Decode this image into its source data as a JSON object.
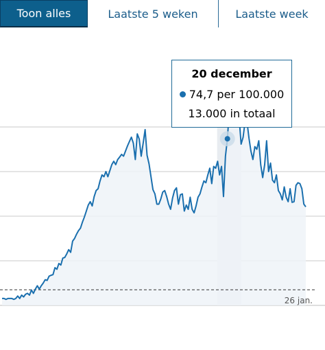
{
  "tabs": [
    {
      "label": "Toon alles",
      "active": true
    },
    {
      "label": "Laatste 5 weken",
      "active": false
    },
    {
      "label": "Laatste week",
      "active": false
    }
  ],
  "colors": {
    "line": "#1a6fae",
    "area": "#eef3f8",
    "grid": "#c8c8c8",
    "dashed": "#333333",
    "tab_active_bg": "#0d5f8c",
    "tab_text": "#1a5c8a",
    "highlight_band": "#e8ecf0"
  },
  "tooltip": {
    "title": "20 december",
    "value_text": "74,7 per 100.000",
    "total_text": "13.000 in totaal"
  },
  "chart_data": {
    "type": "area",
    "title": "",
    "xlabel": "",
    "ylabel": "",
    "grid": true,
    "x_tick_labels": [
      "26 jan."
    ],
    "ylim": [
      0,
      100
    ],
    "reference_value": 7,
    "highlight_index": 115,
    "values": [
      3.1,
      3.1,
      2.7,
      3.1,
      3.1,
      3.1,
      2.7,
      3.1,
      4.2,
      3.1,
      4.6,
      3.8,
      5.0,
      5.4,
      4.6,
      6.9,
      5.4,
      7.3,
      8.8,
      7.3,
      8.8,
      10.0,
      11.5,
      11.2,
      13.1,
      13.5,
      13.8,
      16.9,
      16.2,
      18.8,
      18.1,
      21.2,
      21.5,
      23.1,
      25.0,
      23.8,
      28.8,
      30.0,
      31.9,
      33.5,
      34.6,
      37.3,
      39.6,
      42.3,
      45.0,
      46.5,
      44.6,
      48.8,
      51.5,
      52.3,
      55.8,
      58.5,
      57.7,
      60.0,
      57.7,
      60.4,
      63.1,
      64.6,
      63.1,
      65.4,
      66.5,
      67.7,
      66.9,
      69.2,
      71.5,
      73.5,
      75.4,
      72.7,
      65.4,
      76.9,
      74.6,
      66.9,
      72.7,
      78.8,
      67.3,
      63.5,
      57.7,
      51.9,
      50.0,
      45.4,
      45.4,
      47.7,
      50.8,
      51.5,
      48.8,
      45.4,
      43.1,
      48.1,
      51.5,
      52.7,
      45.4,
      49.6,
      50.0,
      42.3,
      45.0,
      43.1,
      48.5,
      43.1,
      41.5,
      44.6,
      48.5,
      50.0,
      53.1,
      55.8,
      55.0,
      58.5,
      61.5,
      54.6,
      62.3,
      61.5,
      64.6,
      58.5,
      62.3,
      48.8,
      66.9,
      74.7,
      88.1,
      93.1,
      90.8,
      86.5,
      91.9,
      83.8,
      72.3,
      75.4,
      82.3,
      82.3,
      75.0,
      69.2,
      65.4,
      71.2,
      70.0,
      73.8,
      63.1,
      57.3,
      63.1,
      73.8,
      60.0,
      63.8,
      56.2,
      55.0,
      58.5,
      51.5,
      50.0,
      47.3,
      53.1,
      48.5,
      46.5,
      52.3,
      46.2,
      46.5,
      53.8,
      55.0,
      54.6,
      52.3,
      45.4,
      44.2
    ]
  }
}
